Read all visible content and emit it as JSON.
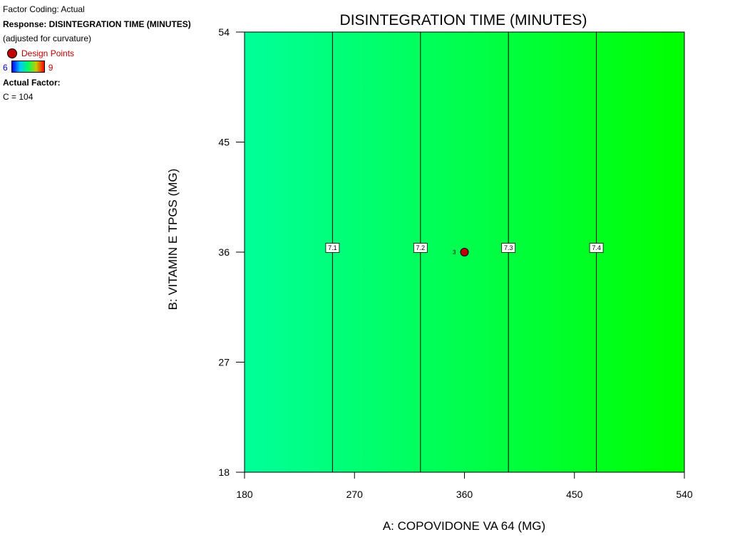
{
  "legend": {
    "factor_coding": "Factor Coding: Actual",
    "response": "Response: DISINTEGRATION TIME (MINUTES)",
    "note": "(adjusted for curvature)",
    "design_points_label": "Design Points",
    "range_low": "6",
    "range_high": "9",
    "actual_factor_title": "Actual Factor:",
    "actual_factor_value": "C = 104"
  },
  "chart_data": {
    "type": "contour",
    "title": "DISINTEGRATION TIME (MINUTES)",
    "xlabel": "A: COPOVIDONE VA 64 (MG)",
    "ylabel": "B: VITAMIN E TPGS (MG)",
    "xlim": [
      180,
      540
    ],
    "ylim": [
      18,
      54
    ],
    "x_ticks": [
      180,
      270,
      360,
      450,
      540
    ],
    "y_ticks": [
      18,
      27,
      36,
      45,
      54
    ],
    "contours": [
      {
        "level": "7.1",
        "x": 252,
        "label_y": 36
      },
      {
        "level": "7.2",
        "x": 324,
        "label_y": 36
      },
      {
        "level": "7.3",
        "x": 396,
        "label_y": 36
      },
      {
        "level": "7.4",
        "x": 468,
        "label_y": 36
      }
    ],
    "design_points": [
      {
        "x": 360,
        "y": 36,
        "label": "3"
      }
    ],
    "colors": {
      "left_fill": "#00ff9a",
      "right_fill": "#00ff00",
      "design_point": "#c00000"
    }
  }
}
